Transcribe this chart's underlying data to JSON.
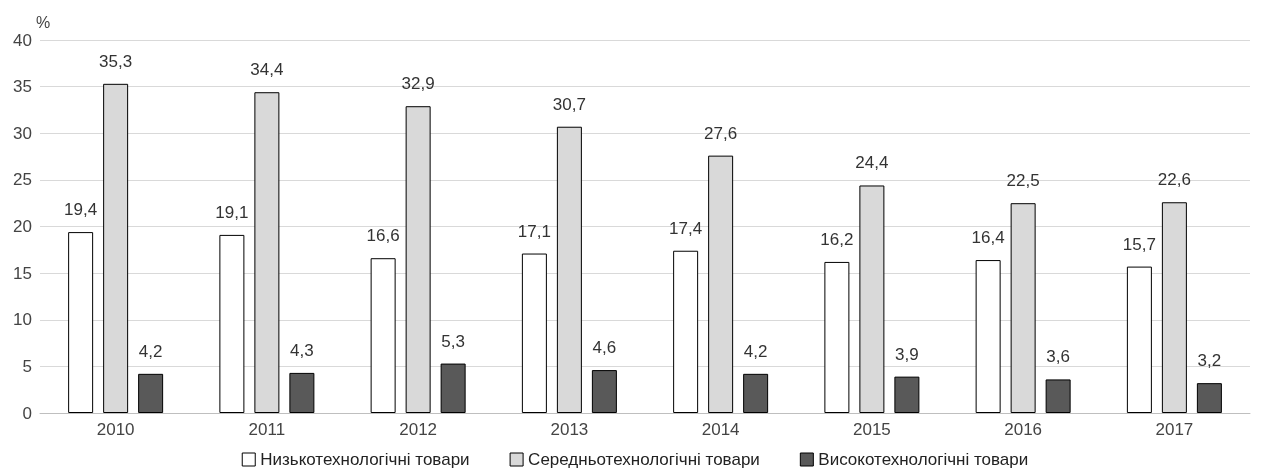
{
  "chart_data": {
    "type": "bar",
    "ylabel": "%",
    "categories": [
      "2010",
      "2011",
      "2012",
      "2013",
      "2014",
      "2015",
      "2016",
      "2017"
    ],
    "series": [
      {
        "name": "Низькотехнологічні товари",
        "color": "#ffffff",
        "values": [
          19.4,
          19.1,
          16.6,
          17.1,
          17.4,
          16.2,
          16.4,
          15.7
        ],
        "value_labels": [
          "19,4",
          "19,1",
          "16,6",
          "17,1",
          "17,4",
          "16,2",
          "16,4",
          "15,7"
        ]
      },
      {
        "name": "Середньотехнологічні товари",
        "color": "#d9d9d9",
        "values": [
          35.3,
          34.4,
          32.9,
          30.7,
          27.6,
          24.4,
          22.5,
          22.6
        ],
        "value_labels": [
          "35,3",
          "34,4",
          "32,9",
          "30,7",
          "27,6",
          "24,4",
          "22,5",
          "22,6"
        ]
      },
      {
        "name": "Високотехнологічні товари",
        "color": "#595959",
        "values": [
          4.2,
          4.3,
          5.3,
          4.6,
          4.2,
          3.9,
          3.6,
          3.2
        ],
        "value_labels": [
          "4,2",
          "4,3",
          "5,3",
          "4,6",
          "4,2",
          "3,9",
          "3,6",
          "3,2"
        ]
      }
    ],
    "ylim": [
      0,
      40
    ],
    "yticks": [
      0,
      5,
      10,
      15,
      20,
      25,
      30,
      35,
      40
    ],
    "grid": "y",
    "legend": "bottom"
  }
}
